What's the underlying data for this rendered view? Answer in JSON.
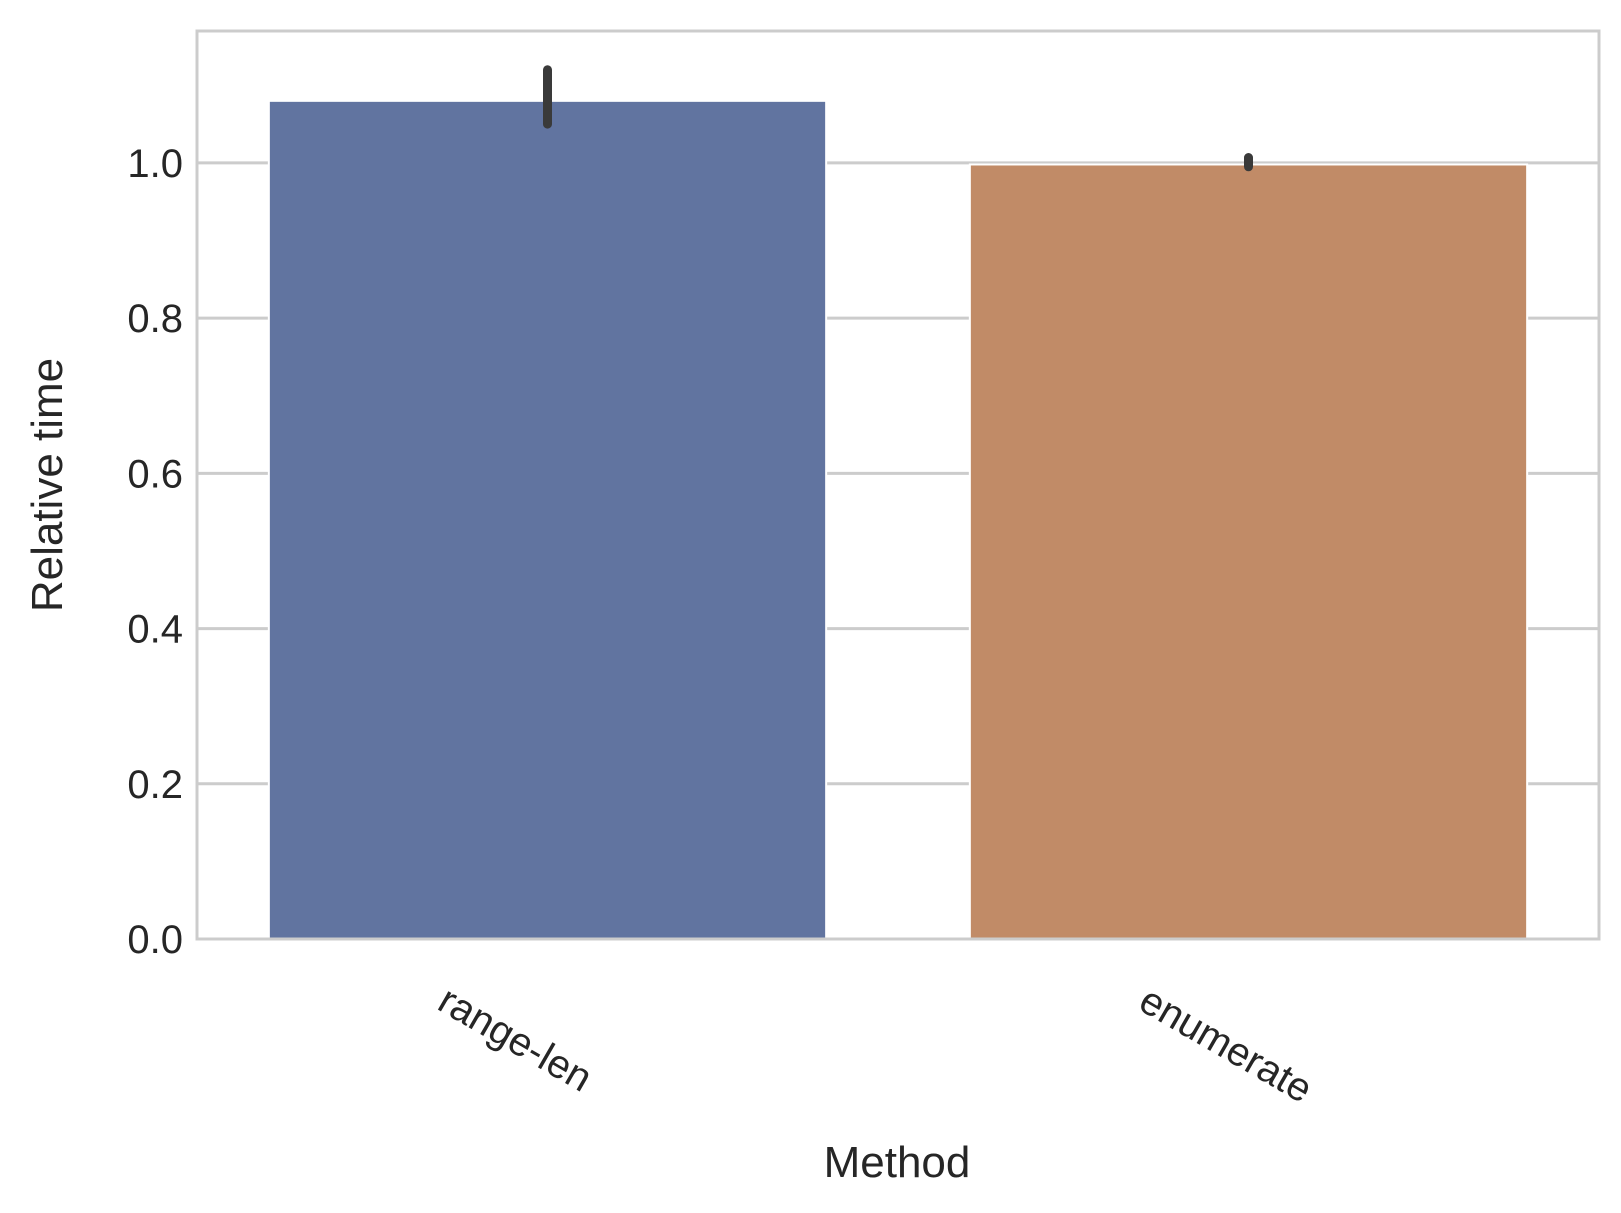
{
  "chart_data": {
    "type": "bar",
    "title": "",
    "xlabel": "Method",
    "ylabel": "Relative time",
    "categories": [
      "range-len",
      "enumerate"
    ],
    "values": [
      1.08,
      0.998
    ],
    "error_bars": [
      {
        "low": 1.05,
        "high": 1.12
      },
      {
        "low": 0.995,
        "high": 1.007
      }
    ],
    "ylim": [
      0,
      1.17
    ],
    "yticks": [
      0.0,
      0.2,
      0.4,
      0.6,
      0.8,
      1.0
    ],
    "ytick_labels": [
      "0.0",
      "0.2",
      "0.4",
      "0.6",
      "0.8",
      "1.0"
    ],
    "xtick_rotation": "angled",
    "grid": "horizontal",
    "colors": [
      "#6174a0",
      "#c18b67"
    ],
    "error_color": "#3a3a3a",
    "grid_color": "#cccccc",
    "frame_color": "#cccccc"
  }
}
